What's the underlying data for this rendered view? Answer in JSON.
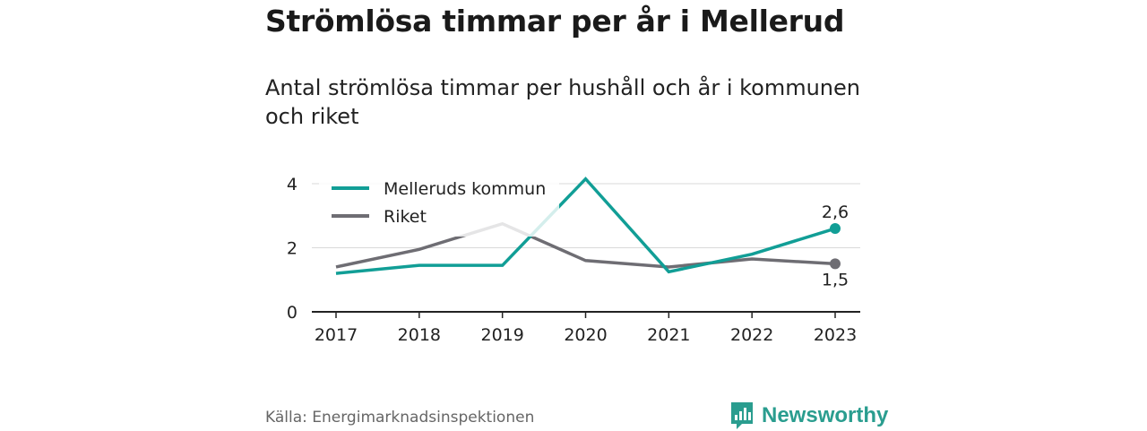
{
  "header": {
    "title": "Strömlösa timmar per år i Mellerud",
    "subtitle": "Antal strömlösa timmar per hushåll och år i kommunen och riket"
  },
  "footer": {
    "source": "Källa: Energimarknadsinspektionen",
    "brand": "Newsworthy"
  },
  "colors": {
    "mellerud": "#119e96",
    "riket": "#6e6d73",
    "grid": "#d9d9d9",
    "axis": "#222222",
    "brand": "#2a9d8f"
  },
  "icons": {
    "brand_logo": "bar-chart-bubble-icon"
  },
  "chart_data": {
    "type": "line",
    "x": [
      "2017",
      "2018",
      "2019",
      "2020",
      "2021",
      "2022",
      "2023"
    ],
    "yticks": [
      "0",
      "2",
      "4"
    ],
    "ylim": [
      0,
      4.3
    ],
    "grid": true,
    "legend_position": "top-left",
    "series": [
      {
        "name": "Melleruds kommun",
        "values": [
          1.2,
          1.45,
          1.45,
          4.15,
          1.25,
          1.8,
          2.6
        ],
        "end_label": "2,6"
      },
      {
        "name": "Riket",
        "values": [
          1.4,
          1.95,
          2.75,
          1.6,
          1.4,
          1.65,
          1.5
        ],
        "end_label": "1,5"
      }
    ]
  }
}
